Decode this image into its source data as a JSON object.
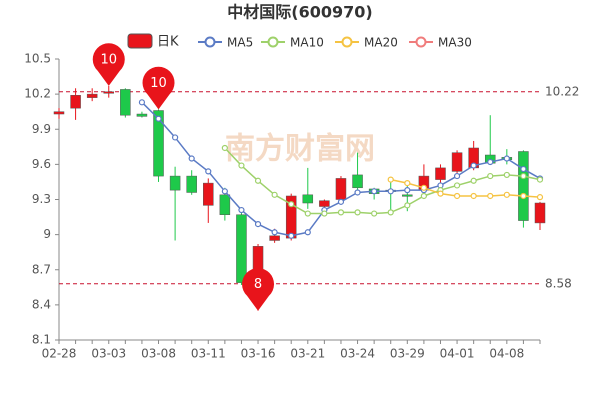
{
  "chart_data": {
    "type": "candlestick",
    "title": "中材国际(600970)",
    "watermark": "南方财富网",
    "categories": [
      "02-28",
      null,
      null,
      "03-03",
      null,
      null,
      "03-08",
      null,
      null,
      "03-11",
      null,
      null,
      "03-16",
      null,
      null,
      "03-21",
      null,
      null,
      "03-24",
      null,
      null,
      "03-29",
      null,
      null,
      "04-01",
      null,
      null,
      "04-08",
      null,
      null
    ],
    "candle_name": "日K",
    "up_color": "#e8141b",
    "down_color": "#1ec94a",
    "open": [
      10.03,
      10.08,
      10.17,
      10.22,
      10.24,
      10.03,
      10.06,
      9.5,
      9.5,
      9.25,
      9.34,
      9.17,
      8.45,
      8.95,
      8.97,
      9.34,
      9.24,
      9.3,
      9.51,
      9.39,
      9.38,
      9.34,
      9.38,
      9.47,
      9.54,
      9.57,
      9.68,
      9.66,
      9.71,
      9.1
    ],
    "high": [
      10.08,
      10.25,
      10.25,
      10.27,
      10.25,
      10.05,
      10.07,
      9.58,
      9.55,
      9.48,
      9.4,
      9.22,
      8.92,
      9.05,
      9.35,
      9.57,
      9.3,
      9.5,
      9.7,
      9.4,
      9.45,
      9.42,
      9.6,
      9.6,
      9.72,
      9.8,
      10.02,
      9.73,
      9.72,
      9.28
    ],
    "low": [
      9.99,
      9.98,
      10.14,
      10.17,
      10.0,
      10.0,
      9.45,
      8.95,
      9.34,
      9.1,
      9.12,
      8.57,
      8.35,
      8.93,
      8.95,
      9.22,
      9.2,
      9.27,
      9.38,
      9.3,
      9.17,
      9.2,
      9.35,
      9.44,
      9.52,
      9.55,
      9.6,
      9.6,
      9.06,
      9.04
    ],
    "close": [
      10.05,
      10.19,
      10.2,
      10.22,
      10.02,
      10.01,
      9.5,
      9.38,
      9.36,
      9.44,
      9.17,
      8.59,
      8.9,
      8.99,
      9.33,
      9.27,
      9.29,
      9.48,
      9.4,
      9.35,
      9.37,
      9.33,
      9.5,
      9.57,
      9.7,
      9.74,
      9.61,
      9.64,
      9.12,
      9.27
    ],
    "lines": [
      {
        "name": "MA5",
        "color": "#5b7bc5",
        "values": [
          null,
          null,
          null,
          null,
          null,
          10.13,
          9.99,
          9.83,
          9.65,
          9.54,
          9.37,
          9.21,
          9.09,
          9.02,
          8.99,
          9.02,
          9.21,
          9.28,
          9.36,
          9.37,
          9.37,
          9.38,
          9.38,
          9.42,
          9.5,
          9.59,
          9.62,
          9.65,
          9.56,
          9.48
        ]
      },
      {
        "name": "MA10",
        "color": "#9ed16a",
        "values": [
          null,
          null,
          null,
          null,
          null,
          null,
          null,
          null,
          null,
          null,
          9.74,
          9.59,
          9.46,
          9.34,
          9.26,
          9.18,
          9.18,
          9.19,
          9.19,
          9.18,
          9.19,
          9.25,
          9.33,
          9.38,
          9.42,
          9.46,
          9.5,
          9.51,
          9.5,
          9.47
        ]
      },
      {
        "name": "MA20",
        "color": "#f5c342",
        "values": [
          null,
          null,
          null,
          null,
          null,
          null,
          null,
          null,
          null,
          null,
          null,
          null,
          null,
          null,
          null,
          null,
          null,
          null,
          null,
          null,
          9.47,
          9.44,
          9.4,
          9.35,
          9.33,
          9.33,
          9.33,
          9.34,
          9.33,
          9.32
        ]
      },
      {
        "name": "MA30",
        "color": "#f07c7c",
        "values": [
          null,
          null,
          null,
          null,
          null,
          null,
          null,
          null,
          null,
          null,
          null,
          null,
          null,
          null,
          null,
          null,
          null,
          null,
          null,
          null,
          null,
          null,
          null,
          null,
          null,
          null,
          null,
          null,
          null,
          null
        ]
      }
    ],
    "ylim": [
      8.1,
      10.5
    ],
    "yticks": [
      8.1,
      8.4,
      8.7,
      9,
      9.3,
      9.6,
      9.9,
      10.2,
      10.5
    ],
    "hlines": [
      {
        "value": 10.22,
        "color": "#c8102e"
      },
      {
        "value": 8.58,
        "color": "#c8102e"
      }
    ],
    "annotations": [
      {
        "text": "10",
        "index": 3,
        "at": "high"
      },
      {
        "text": "10",
        "index": 6,
        "at": "high"
      },
      {
        "text": "8",
        "index": 12,
        "at": "low"
      }
    ]
  }
}
